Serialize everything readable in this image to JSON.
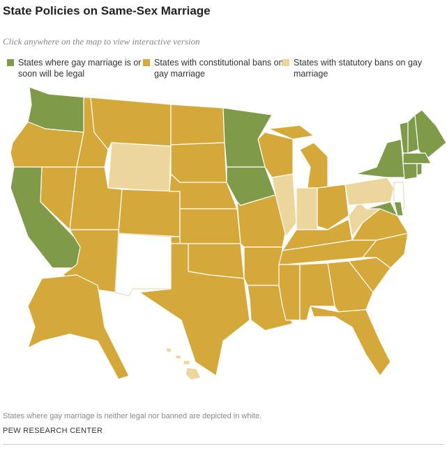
{
  "header": {
    "title": "State Policies on Same-Sex Marriage",
    "subtitle": "Click anywhere on the map to view interactive version"
  },
  "legend": [
    {
      "label": "States where gay marriage is or soon will be legal",
      "color": "#7f9a48"
    },
    {
      "label": "States with constitutional bans on gay marriage",
      "color": "#d4a93a"
    },
    {
      "label": "States with statutory bans on gay marriage",
      "color": "#ecd69c"
    }
  ],
  "neither_color": "#ffffff",
  "footer": {
    "note": "States where gay marriage is neither legal nor banned are depicted in white.",
    "source": "PEW RESEARCH CENTER"
  }
}
